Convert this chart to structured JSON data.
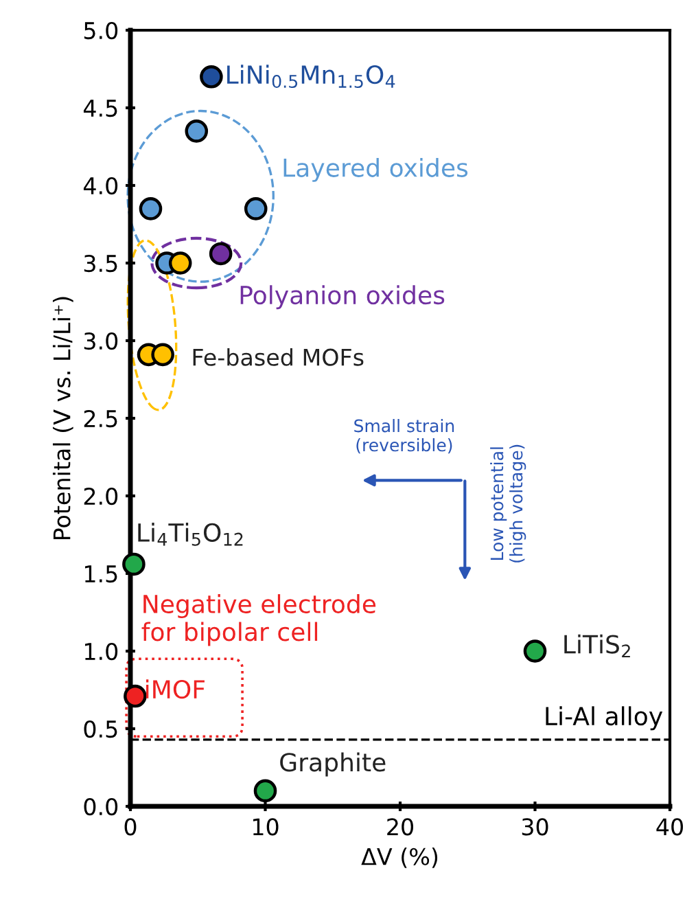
{
  "chart_data": {
    "type": "scatter",
    "xlabel": "ΔV (%)",
    "ylabel": "Potenital (V vs. Li/Li⁺)",
    "xlim": [
      0,
      40
    ],
    "xticks": [
      0,
      10,
      20,
      30,
      40
    ],
    "ylim": [
      0,
      5
    ],
    "yticks": [
      {
        "value": 0,
        "label": "0.0"
      },
      {
        "value": 0.5,
        "label": "0.5"
      },
      {
        "value": 1,
        "label": "1.0"
      },
      {
        "value": 1.5,
        "label": "1.5"
      },
      {
        "value": 2,
        "label": "2.0"
      },
      {
        "value": 2.5,
        "label": "2.5"
      },
      {
        "value": 3,
        "label": "3.0"
      },
      {
        "value": 3.5,
        "label": "3.5"
      },
      {
        "value": 4,
        "label": "4.0"
      },
      {
        "value": 4.5,
        "label": "4.5"
      },
      {
        "value": 5,
        "label": "5.0"
      }
    ],
    "grid": false,
    "legend": false,
    "marker": "circle",
    "series": [
      {
        "color": "#1f4e9c",
        "x": [
          6.0
        ],
        "values": [
          4.7
        ]
      },
      {
        "color": "#5b9bd5",
        "x": [
          4.9,
          1.5,
          9.3,
          2.7
        ],
        "values": [
          4.35,
          3.85,
          3.85,
          3.5
        ]
      },
      {
        "color": "#7030a0",
        "x": [
          6.7
        ],
        "values": [
          3.56
        ]
      },
      {
        "color": "#ffc000",
        "x": [
          3.7,
          1.35,
          2.4
        ],
        "values": [
          3.5,
          2.91,
          2.91
        ]
      },
      {
        "color": "#22a84a",
        "x": [
          0.25,
          30,
          10
        ],
        "values": [
          1.56,
          1.0,
          0.1
        ]
      },
      {
        "color": "#ee2222",
        "x": [
          0.35
        ],
        "values": [
          0.71
        ]
      }
    ],
    "ref_lines": [
      {
        "axis": "y",
        "value": 0.43,
        "label": "Li-Al alloy",
        "color": "#000000",
        "line_style": "dashed"
      }
    ],
    "annotations": [
      "LiNi$_{0.5}$Mn$_{1.5}$O$_{4}$",
      "Layered oxides",
      "Polyanion oxides",
      "Fe-based MOFs",
      "Small strain\n(reversible)",
      "Low potential\n(high voltage)",
      "Li$_{4}$Ti$_{5}$O$_{12}$",
      "Negative electrode\nfor bipolar cell",
      "iMOF",
      "LiTiS$_{2}$",
      "Graphite"
    ]
  }
}
